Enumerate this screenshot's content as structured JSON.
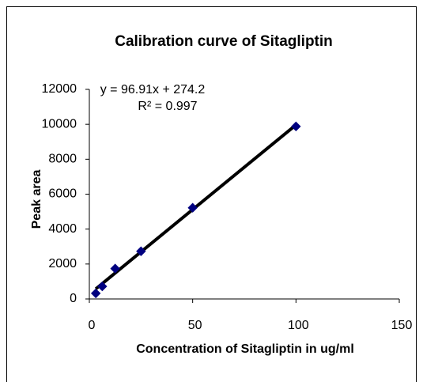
{
  "chart_data": {
    "type": "scatter",
    "title": "Calibration curve of Sitagliptin",
    "x_label": "Concentration of Sitagliptin  in ug/ml",
    "y_label": "Peak area",
    "x": [
      3.125,
      6.25,
      12.5,
      25,
      50,
      100
    ],
    "series": [
      {
        "name": "Peak area",
        "color": "#000080",
        "values": [
          320,
          720,
          1740,
          2730,
          5220,
          9880
        ]
      }
    ],
    "trendline": {
      "slope": 96.91,
      "intercept": 274.2,
      "color": "#000000",
      "equation": "y = 96.91x + 274.2",
      "r2": "R² = 0.997"
    },
    "xlim": [
      0,
      150
    ],
    "xticks": [
      0,
      50,
      100,
      150
    ],
    "ylim": [
      0,
      12000
    ],
    "yticks": [
      0,
      2000,
      4000,
      6000,
      8000,
      10000,
      12000
    ]
  }
}
